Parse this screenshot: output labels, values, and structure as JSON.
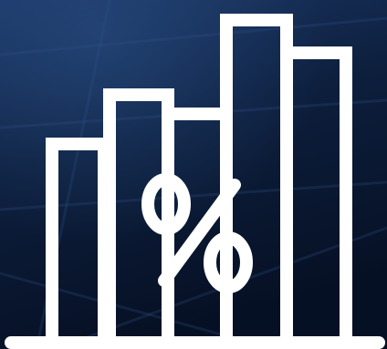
{
  "colors": {
    "background": "#0b1a33",
    "background_dark": "#050d1d",
    "background_light": "#1d3a66",
    "icon": "#ffffff"
  },
  "icon": {
    "name": "percentage-bar-chart-icon",
    "symbol": "%"
  }
}
